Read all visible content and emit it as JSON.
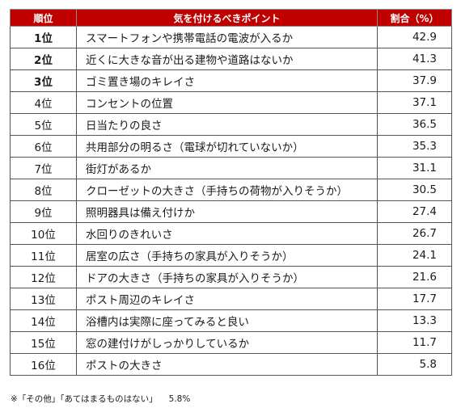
{
  "table": {
    "headers": {
      "rank": "順位",
      "point": "気を付けるべきポイント",
      "pct": "割合（%）"
    },
    "rows": [
      {
        "rank": "1位",
        "point": "スマートフォンや携帯電話の電波が入るか",
        "pct": "42.9"
      },
      {
        "rank": "2位",
        "point": "近くに大きな音が出る建物や道路はないか",
        "pct": "41.3"
      },
      {
        "rank": "3位",
        "point": "ゴミ置き場のキレイさ",
        "pct": "37.9"
      },
      {
        "rank": "4位",
        "point": "コンセントの位置",
        "pct": "37.1"
      },
      {
        "rank": "5位",
        "point": "日当たりの良さ",
        "pct": "36.5"
      },
      {
        "rank": "6位",
        "point": "共用部分の明るさ（電球が切れていないか）",
        "pct": "35.3"
      },
      {
        "rank": "7位",
        "point": "街灯があるか",
        "pct": "31.1"
      },
      {
        "rank": "8位",
        "point": "クローゼットの大きさ（手持ちの荷物が入りそうか）",
        "pct": "30.5"
      },
      {
        "rank": "9位",
        "point": "照明器具は備え付けか",
        "pct": "27.4"
      },
      {
        "rank": "10位",
        "point": "水回りのきれいさ",
        "pct": "26.7"
      },
      {
        "rank": "11位",
        "point": "居室の広さ（手持ちの家具が入りそうか）",
        "pct": "24.1"
      },
      {
        "rank": "12位",
        "point": "ドアの大きさ（手持ちの家具が入りそうか）",
        "pct": "21.6"
      },
      {
        "rank": "13位",
        "point": "ポスト周辺のキレイさ",
        "pct": "17.7"
      },
      {
        "rank": "14位",
        "point": "浴槽内は実際に座ってみると良い",
        "pct": "13.3"
      },
      {
        "rank": "15位",
        "point": "窓の建付けがしっかりしているか",
        "pct": "11.7"
      },
      {
        "rank": "16位",
        "point": "ポストの大きさ",
        "pct": "5.8"
      }
    ]
  },
  "footnote": {
    "text": "※「その他」「あてはまるものはない」",
    "value": "5.8%"
  },
  "colors": {
    "header_bg": "#c00000",
    "header_text": "#ffffff",
    "border": "#555555"
  }
}
